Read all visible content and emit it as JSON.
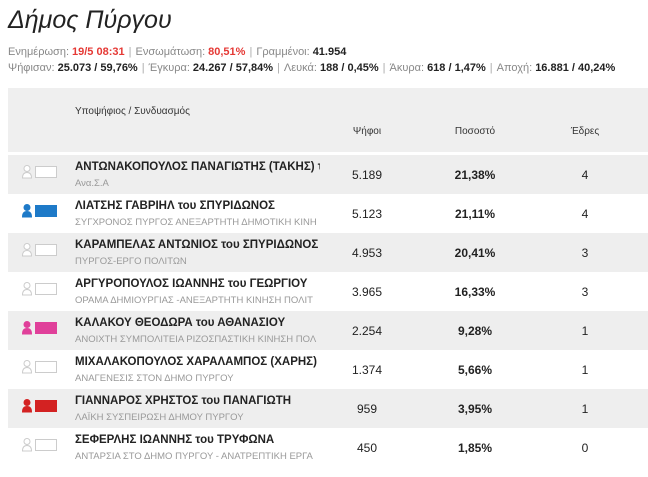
{
  "header": {
    "title": "Δήμος Πύργου"
  },
  "status": [
    [
      {
        "label": "Ενημέρωση:",
        "value": "19/5 08:31",
        "color": "#e53935"
      },
      {
        "label": "Ενσωμάτωση:",
        "value": "80,51%",
        "color": "#e53935"
      },
      {
        "label": "Γραμμένοι:",
        "value": "41.954"
      }
    ],
    [
      {
        "label": "Ψήφισαν:",
        "value": "25.073 / 59,76%"
      },
      {
        "label": "Έγκυρα:",
        "value": "24.267 / 57,84%"
      },
      {
        "label": "Λευκά:",
        "value": "188 / 0,45%"
      },
      {
        "label": "Άκυρα:",
        "value": "618 / 1,47%"
      },
      {
        "label": "Αποχή:",
        "value": "16.881 / 40,24%"
      }
    ]
  ],
  "table": {
    "columns": [
      "Υποψήφιος / Συνδυασμός",
      "Ψήφοι",
      "Ποσοστό",
      "Έδρες"
    ],
    "rows": [
      {
        "name": "ΑΝΤΩΝΑΚΟΠΟΥΛΟΣ ΠΑΝΑΓΙΩΤΗΣ (ΤΑΚΗΣ) του",
        "party": "Ανα.Σ.Α",
        "votes": "5.189",
        "percent": "21,38%",
        "seats": "4",
        "color": "#ffffff"
      },
      {
        "name": "ΛΙΑΤΣΗΣ ΓΑΒΡΙΗΛ του ΣΠΥΡΙΔΩΝΟΣ",
        "party": "ΣΥΓΧΡΟΝΟΣ ΠΥΡΓΟΣ ΑΝΕΞΑΡΤΗΤΗ ΔΗΜΟΤΙΚΗ ΚΙΝΗ",
        "votes": "5.123",
        "percent": "21,11%",
        "seats": "4",
        "color": "#1e7ac8"
      },
      {
        "name": "ΚΑΡΑΜΠΕΛΑΣ ΑΝΤΩΝΙΟΣ του ΣΠΥΡΙΔΩΝΟΣ",
        "party": "ΠΥΡΓΟΣ-ΕΡΓΟ ΠΟΛΙΤΩΝ",
        "votes": "4.953",
        "percent": "20,41%",
        "seats": "3",
        "color": "#ffffff"
      },
      {
        "name": "ΑΡΓΥΡΟΠΟΥΛΟΣ ΙΩΑΝΝΗΣ του ΓΕΩΡΓΙΟΥ",
        "party": "ΟΡΑΜΑ ΔΗΜΙΟΥΡΓΙΑΣ -ΑΝΕΞΑΡΤΗΤΗ ΚΙΝΗΣΗ ΠΟΛΙΤ",
        "votes": "3.965",
        "percent": "16,33%",
        "seats": "3",
        "color": "#ffffff"
      },
      {
        "name": "ΚΑΛΑΚΟΥ ΘΕΟΔΩΡΑ του ΑΘΑΝΑΣΙΟΥ",
        "party": "ΑΝΟΙΧΤΗ ΣΥΜΠΟΛΙΤΕΙΑ ΡΙΖΟΣΠΑΣΤΙΚΗ ΚΙΝΗΣΗ ΠΟΛ",
        "votes": "2.254",
        "percent": "9,28%",
        "seats": "1",
        "color": "#e0409a"
      },
      {
        "name": "ΜΙΧΑΛΑΚΟΠΟΥΛΟΣ ΧΑΡΑΛΑΜΠΟΣ (ΧΑΡΗΣ) τ",
        "party": "ΑΝΑΓΕΝΕΣΙΣ ΣΤΟΝ ΔΗΜΟ ΠΥΡΓΟΥ",
        "votes": "1.374",
        "percent": "5,66%",
        "seats": "1",
        "color": "#ffffff"
      },
      {
        "name": "ΓΙΑΝΝΑΡΟΣ ΧΡΗΣΤΟΣ του ΠΑΝΑΓΙΩΤΗ",
        "party": "ΛΑΪΚΗ ΣΥΣΠΕΙΡΩΣΗ ΔΗΜΟΥ ΠΥΡΓΟΥ",
        "votes": "959",
        "percent": "3,95%",
        "seats": "1",
        "color": "#d32222"
      },
      {
        "name": "ΣΕΦΕΡΛΗΣ ΙΩΑΝΝΗΣ του ΤΡΥΦΩΝΑ",
        "party": "ΑΝΤΑΡΣΙΑ ΣΤΟ ΔΗΜΟ ΠΥΡΓΟΥ - ΑΝΑΤΡΕΠΤΙΚΗ ΕΡΓΑ",
        "votes": "450",
        "percent": "1,85%",
        "seats": "0",
        "color": "#ffffff"
      }
    ]
  }
}
